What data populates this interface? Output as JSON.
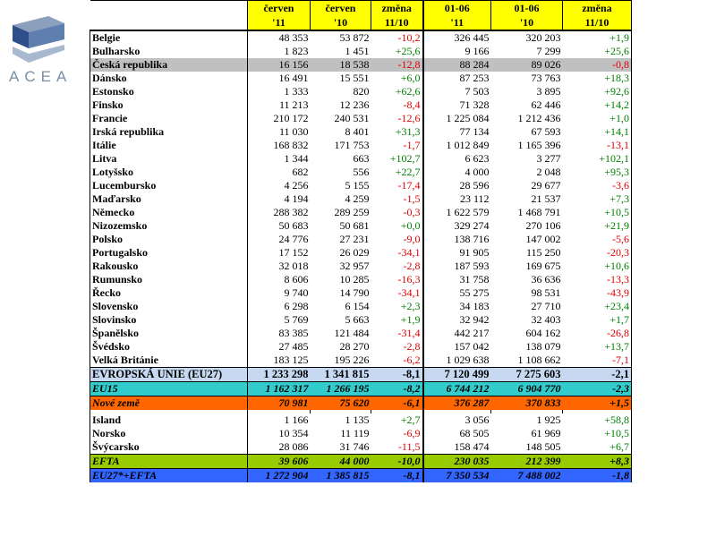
{
  "logo": {
    "text": "ACEA"
  },
  "headers": {
    "row1": [
      "červen",
      "červen",
      "změna",
      "01-06",
      "01-06",
      "změna"
    ],
    "row2": [
      "'11",
      "'10",
      "11/10",
      "'11",
      "'10",
      "11/10"
    ]
  },
  "countries": [
    {
      "name": "Belgie",
      "v": [
        "48 353",
        "53 872",
        "-10,2",
        "326 445",
        "320 203",
        "+1,9"
      ]
    },
    {
      "name": "Bulharsko",
      "v": [
        "1 823",
        "1 451",
        "+25,6",
        "9 166",
        "7 299",
        "+25,6"
      ]
    },
    {
      "name": "Česká republika",
      "v": [
        "16 156",
        "18 538",
        "-12,8",
        "88 284",
        "89 026",
        "-0,8"
      ],
      "hl": true
    },
    {
      "name": "Dánsko",
      "v": [
        "16 491",
        "15 551",
        "+6,0",
        "87 253",
        "73 763",
        "+18,3"
      ]
    },
    {
      "name": "Estonsko",
      "v": [
        "1 333",
        "820",
        "+62,6",
        "7 503",
        "3 895",
        "+92,6"
      ]
    },
    {
      "name": "Finsko",
      "v": [
        "11 213",
        "12 236",
        "-8,4",
        "71 328",
        "62 446",
        "+14,2"
      ]
    },
    {
      "name": "Francie",
      "v": [
        "210 172",
        "240 531",
        "-12,6",
        "1 225 084",
        "1 212 436",
        "+1,0"
      ]
    },
    {
      "name": "Irská republika",
      "v": [
        "11 030",
        "8 401",
        "+31,3",
        "77 134",
        "67 593",
        "+14,1"
      ]
    },
    {
      "name": "Itálie",
      "v": [
        "168 832",
        "171 753",
        "-1,7",
        "1 012 849",
        "1 165 396",
        "-13,1"
      ]
    },
    {
      "name": "Litva",
      "v": [
        "1 344",
        "663",
        "+102,7",
        "6 623",
        "3 277",
        "+102,1"
      ]
    },
    {
      "name": "Lotyšsko",
      "v": [
        "682",
        "556",
        "+22,7",
        "4 000",
        "2 048",
        "+95,3"
      ]
    },
    {
      "name": "Lucembursko",
      "v": [
        "4 256",
        "5 155",
        "-17,4",
        "28 596",
        "29 677",
        "-3,6"
      ]
    },
    {
      "name": "Maďarsko",
      "v": [
        "4 194",
        "4 259",
        "-1,5",
        "23 112",
        "21 537",
        "+7,3"
      ]
    },
    {
      "name": "Německo",
      "v": [
        "288 382",
        "289 259",
        "-0,3",
        "1 622 579",
        "1 468 791",
        "+10,5"
      ]
    },
    {
      "name": "Nizozemsko",
      "v": [
        "50 683",
        "50 681",
        "+0,0",
        "329 274",
        "270 106",
        "+21,9"
      ]
    },
    {
      "name": "Polsko",
      "v": [
        "24 776",
        "27 231",
        "-9,0",
        "138 716",
        "147 002",
        "-5,6"
      ]
    },
    {
      "name": "Portugalsko",
      "v": [
        "17 152",
        "26 029",
        "-34,1",
        "91 905",
        "115 250",
        "-20,3"
      ]
    },
    {
      "name": "Rakousko",
      "v": [
        "32 018",
        "32 957",
        "-2,8",
        "187 593",
        "169 675",
        "+10,6"
      ]
    },
    {
      "name": "Rumunsko",
      "v": [
        "8 606",
        "10 285",
        "-16,3",
        "31 758",
        "36 636",
        "-13,3"
      ]
    },
    {
      "name": "Řecko",
      "v": [
        "9 740",
        "14 790",
        "-34,1",
        "55 275",
        "98 531",
        "-43,9"
      ]
    },
    {
      "name": "Slovensko",
      "v": [
        "6 298",
        "6 154",
        "+2,3",
        "34 183",
        "27 710",
        "+23,4"
      ]
    },
    {
      "name": "Slovinsko",
      "v": [
        "5 769",
        "5 663",
        "+1,9",
        "32 942",
        "32 403",
        "+1,7"
      ]
    },
    {
      "name": "Španělsko",
      "v": [
        "83 385",
        "121 484",
        "-31,4",
        "442 217",
        "604 162",
        "-26,8"
      ]
    },
    {
      "name": "Švédsko",
      "v": [
        "27 485",
        "28 270",
        "-2,8",
        "157 042",
        "138 079",
        "+13,7"
      ]
    },
    {
      "name": "Velká Británie",
      "v": [
        "183 125",
        "195 226",
        "-6,2",
        "1 029 638",
        "1 108 662",
        "-7,1"
      ]
    }
  ],
  "eu_totals": [
    {
      "name": "EVROPSKÁ UNIE (EU27)",
      "v": [
        "1 233 298",
        "1 341 815",
        "-8,1",
        "7 120 499",
        "7 275 603",
        "-2,1"
      ],
      "cls": "eu27"
    },
    {
      "name": "EU15",
      "v": [
        "1 162 317",
        "1 266 195",
        "-8,2",
        "6 744 212",
        "6 904 770",
        "-2,3"
      ],
      "cls": "eu15"
    },
    {
      "name": "Nové země",
      "v": [
        "70 981",
        "75 620",
        "-6,1",
        "376 287",
        "370 833",
        "+1,5"
      ],
      "cls": "nove"
    }
  ],
  "efta_countries": [
    {
      "name": "Island",
      "v": [
        "1 166",
        "1 135",
        "+2,7",
        "3 056",
        "1 925",
        "+58,8"
      ]
    },
    {
      "name": "Norsko",
      "v": [
        "10 354",
        "11 119",
        "-6,9",
        "68 505",
        "61 969",
        "+10,5"
      ]
    },
    {
      "name": "Švýcarsko",
      "v": [
        "28 086",
        "31 746",
        "-11,5",
        "158 474",
        "148 505",
        "+6,7"
      ]
    }
  ],
  "final_totals": [
    {
      "name": "EFTA",
      "v": [
        "39 606",
        "44 000",
        "-10,0",
        "230 035",
        "212 399",
        "+8,3"
      ],
      "cls": "efta"
    },
    {
      "name": "EU27*+EFTA",
      "v": [
        "1 272 904",
        "1 385 815",
        "-8,1",
        "7 350 534",
        "7 488 002",
        "-1,8"
      ],
      "cls": "eufta"
    }
  ],
  "colors": {
    "header_bg": "#ffff00",
    "highlight_row": "#c0c0c0",
    "negative": "#e00000",
    "positive": "#008000",
    "eu27_bg": "#c6d9f1",
    "eu15_bg": "#33cccc",
    "nove_bg": "#ff6600",
    "efta_bg": "#99cc00",
    "eufta_bg": "#3366ff"
  }
}
